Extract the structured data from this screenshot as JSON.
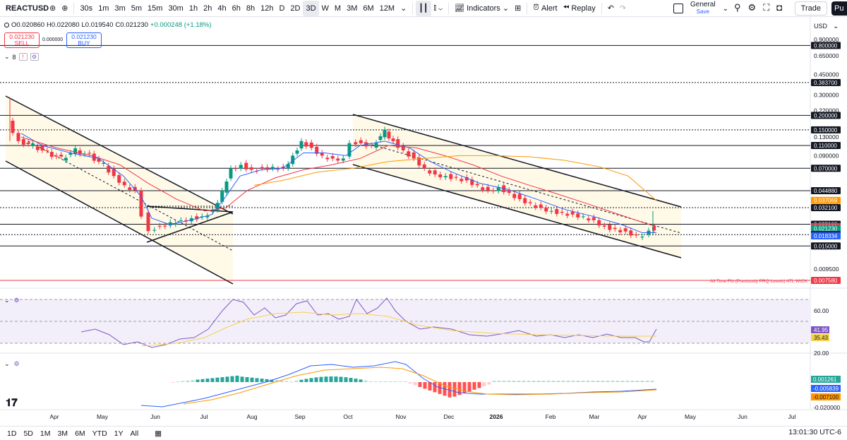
{
  "toolbar": {
    "symbol": "REACTUSD",
    "intervals": [
      "30s",
      "1m",
      "3m",
      "5m",
      "15m",
      "30m",
      "1h",
      "2h",
      "4h",
      "6h",
      "8h",
      "12h",
      "D",
      "2D",
      "3D",
      "W",
      "M",
      "3M",
      "6M",
      "12M"
    ],
    "active_interval": "3D",
    "indicators_label": "Indicators",
    "alert_label": "Alert",
    "replay_label": "Replay",
    "layout_name": "General",
    "layout_sub": "Save",
    "trade_label": "Trade",
    "publish_label": "Pu"
  },
  "legend": {
    "open": "O0.020860",
    "high": "H0.022080",
    "low": "L0.019540",
    "close": "C0.021230",
    "change": "+0.000248 (+1.18%)"
  },
  "order": {
    "sell_price": "0.021230",
    "sell_label": "SELL",
    "spread": "0.000000",
    "buy_price": "0.021230",
    "buy_label": "BUY"
  },
  "indicator_count": "8",
  "currency": "USD",
  "price_axis": {
    "ticks": [
      {
        "v": 0.9,
        "t": "0.900000"
      },
      {
        "v": 0.65,
        "t": "0.650000"
      },
      {
        "v": 0.45,
        "t": "0.450000"
      },
      {
        "v": 0.3,
        "t": "0.300000"
      },
      {
        "v": 0.22,
        "t": "0.220000"
      },
      {
        "v": 0.13,
        "t": "0.130000"
      },
      {
        "v": 0.09,
        "t": "0.090000"
      },
      {
        "v": 0.0095,
        "t": "0.009500"
      }
    ],
    "labels": [
      {
        "v": 0.8,
        "t": "0.800000",
        "bg": "#131722",
        "fg": "#ffffff"
      },
      {
        "v": 0.3837,
        "t": "0.383700",
        "bg": "#131722",
        "fg": "#ffffff"
      },
      {
        "v": 0.2,
        "t": "0.200000",
        "bg": "#131722",
        "fg": "#ffffff"
      },
      {
        "v": 0.15,
        "t": "0.150000",
        "bg": "#131722",
        "fg": "#ffffff"
      },
      {
        "v": 0.11,
        "t": "0.110000",
        "bg": "#131722",
        "fg": "#ffffff"
      },
      {
        "v": 0.07,
        "t": "0.070000",
        "bg": "#131722",
        "fg": "#ffffff"
      },
      {
        "v": 0.04488,
        "t": "0.044880",
        "bg": "#131722",
        "fg": "#ffffff"
      },
      {
        "v": 0.037069,
        "t": "0.037069",
        "bg": "#ff9800",
        "fg": "#ffffff"
      },
      {
        "v": 0.0321,
        "t": "0.032100",
        "bg": "#131722",
        "fg": "#ffffff"
      },
      {
        "v": 0.0231,
        "t": "0.023100",
        "bg": "#131722",
        "fg": "#ffffff"
      },
      {
        "v": 0.022029,
        "t": "0.022029",
        "bg": "#f23645",
        "fg": "#ffffff"
      },
      {
        "v": 0.02123,
        "t": "0.021230",
        "bg": "#089981",
        "fg": "#ffffff",
        "sub": "2d 5h"
      },
      {
        "v": 0.01876,
        "t": "0.018760",
        "bg": "#131722",
        "fg": "#ffffff"
      },
      {
        "v": 0.018334,
        "t": "0.018334",
        "bg": "#2962ff",
        "fg": "#ffffff"
      },
      {
        "v": 0.015,
        "t": "0.015000",
        "bg": "#131722",
        "fg": "#ffffff"
      },
      {
        "v": 0.00758,
        "t": "0.007580",
        "bg": "#f23645",
        "fg": "#ffffff"
      }
    ],
    "fib_label": "All Time Fib (Previously PRQ Levels) ATL WICK"
  },
  "rsi": {
    "ticks": [
      "60.00",
      "20.00"
    ],
    "value": "41.95",
    "ma_value": "35.43"
  },
  "macd": {
    "histogram": "0.001261",
    "macd": "-0.005839",
    "signal": "-0.007100",
    "tick": "-0.020000"
  },
  "time_axis": [
    "Apr",
    "May",
    "Jun",
    "Jul",
    "Aug",
    "Sep",
    "Oct",
    "Nov",
    "Dec",
    "2026",
    "Feb",
    "Mar",
    "Apr",
    "May",
    "Jun",
    "Jul"
  ],
  "range_buttons": [
    "1D",
    "5D",
    "1M",
    "3M",
    "6M",
    "YTD",
    "1Y",
    "All"
  ],
  "clock": "13:01:30 UTC-6",
  "colors": {
    "up": "#089981",
    "down": "#f23645",
    "ma_fast": "#2962ff",
    "ma_mid": "#f23645",
    "ma_slow": "#ff9800",
    "rsi": "#7e57c2"
  }
}
